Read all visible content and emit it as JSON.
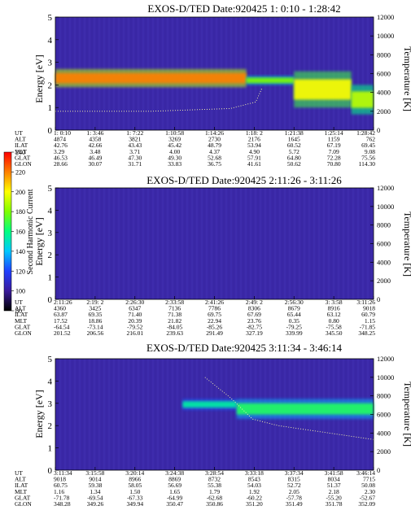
{
  "chart_data": [
    {
      "type": "heatmap",
      "title": "EXOS-D/TED   Date:920425  1: 0:10 - 1:28:42",
      "ylabel": "Energy [eV]",
      "y2label": "Temperature [K]",
      "ylim": [
        0,
        5
      ],
      "y2lim": [
        0,
        12000
      ],
      "yticks": [
        "0",
        "1",
        "2",
        "3",
        "4",
        "5"
      ],
      "y2ticks": [
        "0",
        "2000",
        "4000",
        "6000",
        "8000",
        "10000",
        "12000"
      ],
      "rows": {
        "UT": [
          "1: 0:10",
          "1: 3:46",
          "1: 7:22",
          "1:10:58",
          "1:14:26",
          "1:18: 2",
          "1:21:38",
          "1:25:14",
          "1:28:42"
        ],
        "ALT": [
          "4874",
          "4358",
          "3821",
          "3269",
          "2730",
          "2176",
          "1645",
          "1159",
          "762"
        ],
        "ILAT": [
          "42.76",
          "42.66",
          "43.43",
          "45.42",
          "48.79",
          "53.94",
          "60.52",
          "67.19",
          "69.45"
        ],
        "MLT": [
          "3.29",
          "3.48",
          "3.71",
          "4.00",
          "4.37",
          "4.90",
          "5.72",
          "7.09",
          "9.08"
        ],
        "GLAT": [
          "46.53",
          "46.49",
          "47.30",
          "49.30",
          "52.68",
          "57.91",
          "64.80",
          "72.28",
          "75.56"
        ],
        "GLON": [
          "28.66",
          "30.07",
          "31.71",
          "33.83",
          "36.75",
          "41.61",
          "50.62",
          "70.80",
          "114.30"
        ]
      },
      "bands": [
        {
          "x": [
            0.0,
            0.6
          ],
          "y": [
            1.9,
            2.7
          ],
          "level": 190
        },
        {
          "x": [
            0.6,
            0.75
          ],
          "y": [
            2.0,
            2.4
          ],
          "level": 150
        },
        {
          "x": [
            0.75,
            0.93
          ],
          "y": [
            1.0,
            2.6
          ],
          "level": 170
        },
        {
          "x": [
            0.93,
            1.0
          ],
          "y": [
            0.7,
            2.0
          ],
          "level": 160
        }
      ],
      "temperature_trace": {
        "x": [
          0.0,
          0.3,
          0.55,
          0.63,
          0.65
        ],
        "y": [
          2000,
          2000,
          2300,
          3000,
          4500
        ]
      }
    },
    {
      "type": "heatmap",
      "title": "EXOS-D/TED   Date:920425  2:11:26 - 3:11:26",
      "ylabel": "Energy [eV]",
      "y2label": "Temperature [K]",
      "ylim": [
        0,
        5
      ],
      "y2lim": [
        0,
        12000
      ],
      "yticks": [
        "0",
        "1",
        "2",
        "3",
        "4",
        "5"
      ],
      "y2ticks": [
        "0",
        "2000",
        "4000",
        "6000",
        "8000",
        "10000",
        "12000"
      ],
      "rows": {
        "UT": [
          "2:11:26",
          "2:19: 2",
          "2:26:30",
          "2:33:58",
          "2:41:26",
          "2:49: 2",
          "2:56:30",
          "3: 3:58",
          "3:11:26"
        ],
        "ALT": [
          "4360",
          "3425",
          "6347",
          "7136",
          "7786",
          "8306",
          "8679",
          "8916",
          "9018"
        ],
        "ILAT": [
          "63.87",
          "69.35",
          "71.40",
          "71.38",
          "69.75",
          "67.69",
          "65.44",
          "63.12",
          "60.79"
        ],
        "MLT": [
          "17.52",
          "18.86",
          "20.39",
          "21.82",
          "22.94",
          "23.76",
          "0.35",
          "0.80",
          "1.15"
        ],
        "GLAT": [
          "-64.54",
          "-73.14",
          "-79.52",
          "-84.05",
          "-85.26",
          "-82.75",
          "-79.25",
          "-75.58",
          "-71.85"
        ],
        "GLON": [
          "201.52",
          "206.56",
          "216.01",
          "239.63",
          "291.49",
          "327.19",
          "339.99",
          "345.50",
          "348.25"
        ]
      },
      "bands": [],
      "temperature_trace": null
    },
    {
      "type": "heatmap",
      "title": "EXOS-D/TED   Date:920425  3:11:34 - 3:46:14",
      "ylabel": "Energy [eV]",
      "y2label": "Temperature [K]",
      "ylim": [
        0,
        5
      ],
      "y2lim": [
        0,
        12000
      ],
      "yticks": [
        "0",
        "1",
        "2",
        "3",
        "4",
        "5"
      ],
      "y2ticks": [
        "0",
        "2000",
        "4000",
        "6000",
        "8000",
        "10000",
        "12000"
      ],
      "rows": {
        "UT": [
          "3:11:34",
          "3:15:58",
          "3:20:14",
          "3:24:38",
          "3:28:54",
          "3:33:18",
          "3:37:34",
          "3:41:58",
          "3:46:14"
        ],
        "ALT": [
          "9018",
          "9014",
          "8966",
          "8869",
          "8732",
          "8543",
          "8315",
          "8034",
          "7715"
        ],
        "ILAT": [
          "60.75",
          "59.38",
          "58.05",
          "56.69",
          "55.38",
          "54.03",
          "52.72",
          "51.37",
          "50.08"
        ],
        "MLT": [
          "1.16",
          "1.34",
          "1.50",
          "1.65",
          "1.79",
          "1.92",
          "2.05",
          "2.18",
          "2.30"
        ],
        "GLAT": [
          "-71.78",
          "-69.54",
          "-67.33",
          "-64.99",
          "-62.68",
          "-60.22",
          "-57.78",
          "-55.20",
          "-52.67"
        ],
        "GLON": [
          "348.28",
          "349.26",
          "349.94",
          "350.47",
          "350.86",
          "351.20",
          "351.49",
          "351.78",
          "352.09"
        ]
      },
      "bands": [
        {
          "x": [
            0.4,
            0.57
          ],
          "y": [
            2.7,
            3.2
          ],
          "level": 125
        },
        {
          "x": [
            0.57,
            1.0
          ],
          "y": [
            2.3,
            3.2
          ],
          "level": 135
        }
      ],
      "temperature_trace": {
        "x": [
          0.47,
          0.55,
          0.62,
          0.7,
          0.8,
          0.9,
          1.0
        ],
        "y": [
          10000,
          7800,
          5500,
          4800,
          4300,
          3800,
          3300
        ]
      }
    }
  ],
  "colorbar": {
    "label": "Second Harmonic Current",
    "ticks": [
      "80",
      "100",
      "120",
      "140",
      "160",
      "180",
      "200",
      "220",
      "240"
    ],
    "range": [
      80,
      240
    ],
    "stops": [
      "#000000",
      "#3a1a9c",
      "#2040ff",
      "#00c8ff",
      "#00ff80",
      "#80ff00",
      "#ffff00",
      "#ff8000",
      "#ff0000"
    ]
  },
  "colors": {
    "background": "#3b28a8",
    "trace": "#ffffaa"
  }
}
